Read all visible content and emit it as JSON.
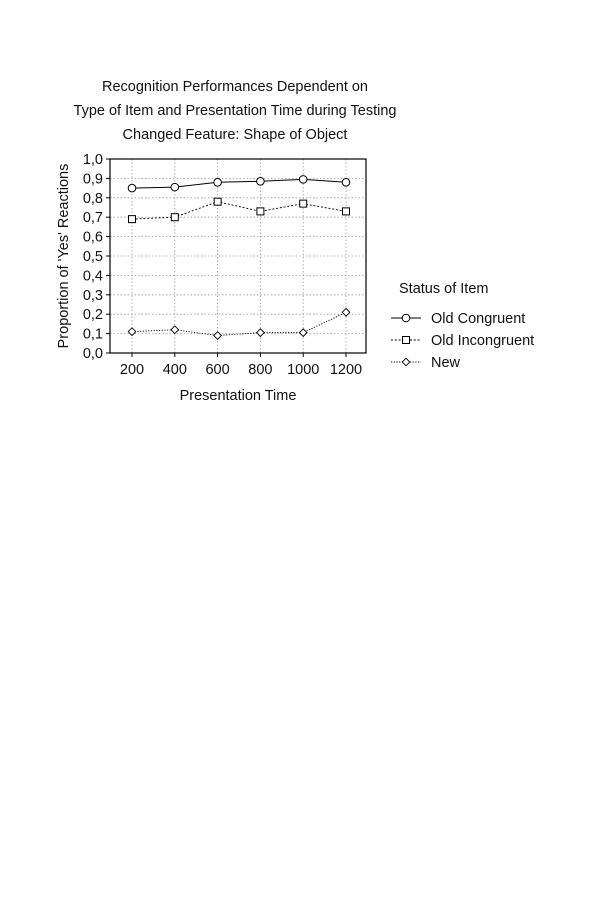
{
  "chart_data": {
    "type": "line",
    "title_lines": [
      "Recognition Performances Dependent on",
      "Type of Item and Presentation Time during Testing",
      "Changed Feature: Shape of Object"
    ],
    "xlabel": "Presentation Time",
    "ylabel": "Proportion of 'Yes' Reactions",
    "categories": [
      "200",
      "400",
      "600",
      "800",
      "1000",
      "1200"
    ],
    "y_ticks": [
      "0,0",
      "0,1",
      "0,2",
      "0,3",
      "0,4",
      "0,5",
      "0,6",
      "0,7",
      "0,8",
      "0,9",
      "1,0"
    ],
    "ylim": [
      0,
      1.0
    ],
    "grid": true,
    "legend_title": "Status of Item",
    "legend_position": "right",
    "series": [
      {
        "name": "Old Congruent",
        "marker": "circle",
        "line": "solid",
        "values": [
          0.85,
          0.855,
          0.88,
          0.885,
          0.895,
          0.88
        ]
      },
      {
        "name": "Old Incongruent",
        "marker": "square",
        "line": "dotted",
        "values": [
          0.69,
          0.7,
          0.78,
          0.73,
          0.77,
          0.73
        ]
      },
      {
        "name": "New",
        "marker": "diamond",
        "line": "dotted",
        "values": [
          0.11,
          0.12,
          0.09,
          0.105,
          0.105,
          0.21
        ]
      }
    ]
  }
}
